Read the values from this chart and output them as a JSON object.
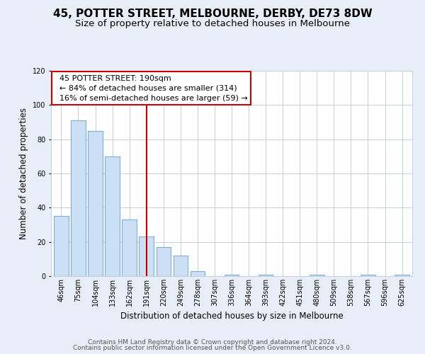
{
  "title": "45, POTTER STREET, MELBOURNE, DERBY, DE73 8DW",
  "subtitle": "Size of property relative to detached houses in Melbourne",
  "xlabel": "Distribution of detached houses by size in Melbourne",
  "ylabel": "Number of detached properties",
  "categories": [
    "46sqm",
    "75sqm",
    "104sqm",
    "133sqm",
    "162sqm",
    "191sqm",
    "220sqm",
    "249sqm",
    "278sqm",
    "307sqm",
    "336sqm",
    "364sqm",
    "393sqm",
    "422sqm",
    "451sqm",
    "480sqm",
    "509sqm",
    "538sqm",
    "567sqm",
    "596sqm",
    "625sqm"
  ],
  "values": [
    35,
    91,
    85,
    70,
    33,
    23,
    17,
    12,
    3,
    0,
    1,
    0,
    1,
    0,
    0,
    1,
    0,
    0,
    1,
    0,
    1
  ],
  "bar_color": "#cce0f5",
  "bar_edge_color": "#7ab0d8",
  "ylim": [
    0,
    120
  ],
  "yticks": [
    0,
    20,
    40,
    60,
    80,
    100,
    120
  ],
  "marker_index": 5,
  "annotation_title": "45 POTTER STREET: 190sqm",
  "annotation_line1": "← 84% of detached houses are smaller (314)",
  "annotation_line2": "16% of semi-detached houses are larger (59) →",
  "annotation_box_color": "#ffffff",
  "annotation_box_edge_color": "#cc0000",
  "vline_color": "#cc0000",
  "footer1": "Contains HM Land Registry data © Crown copyright and database right 2024.",
  "footer2": "Contains public sector information licensed under the Open Government Licence v3.0.",
  "bg_color": "#e8eef8",
  "plot_bg_color": "#ffffff",
  "grid_color": "#c5d0e0",
  "title_fontsize": 11,
  "subtitle_fontsize": 9.5,
  "axis_label_fontsize": 8.5,
  "tick_fontsize": 7,
  "footer_fontsize": 6.5,
  "annotation_fontsize": 8
}
